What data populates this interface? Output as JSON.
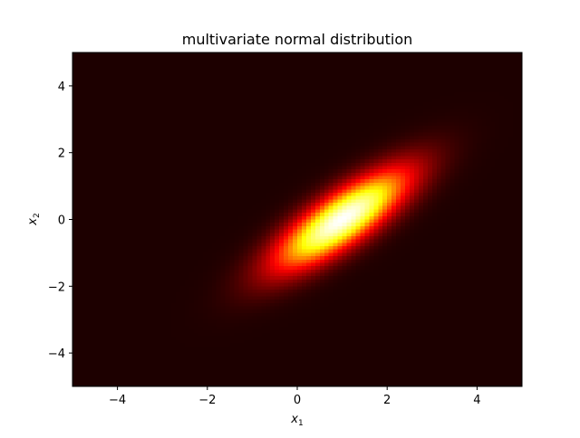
{
  "chart_data": {
    "type": "heatmap",
    "title": "multivariate normal distribution",
    "xlabel": {
      "base": "x",
      "sub": "1"
    },
    "ylabel": {
      "base": "x",
      "sub": "2"
    },
    "xlim": [
      -5,
      5
    ],
    "ylim": [
      -5,
      5
    ],
    "xticks": [
      -4,
      -2,
      0,
      2,
      4
    ],
    "yticks": [
      -4,
      -2,
      0,
      2,
      4
    ],
    "grid": false,
    "colormap": "hot",
    "distribution": {
      "mean": [
        1,
        0
      ],
      "covariance": [
        [
          1,
          0.8
        ],
        [
          0.8,
          1
        ]
      ]
    },
    "grid_resolution": 100
  }
}
